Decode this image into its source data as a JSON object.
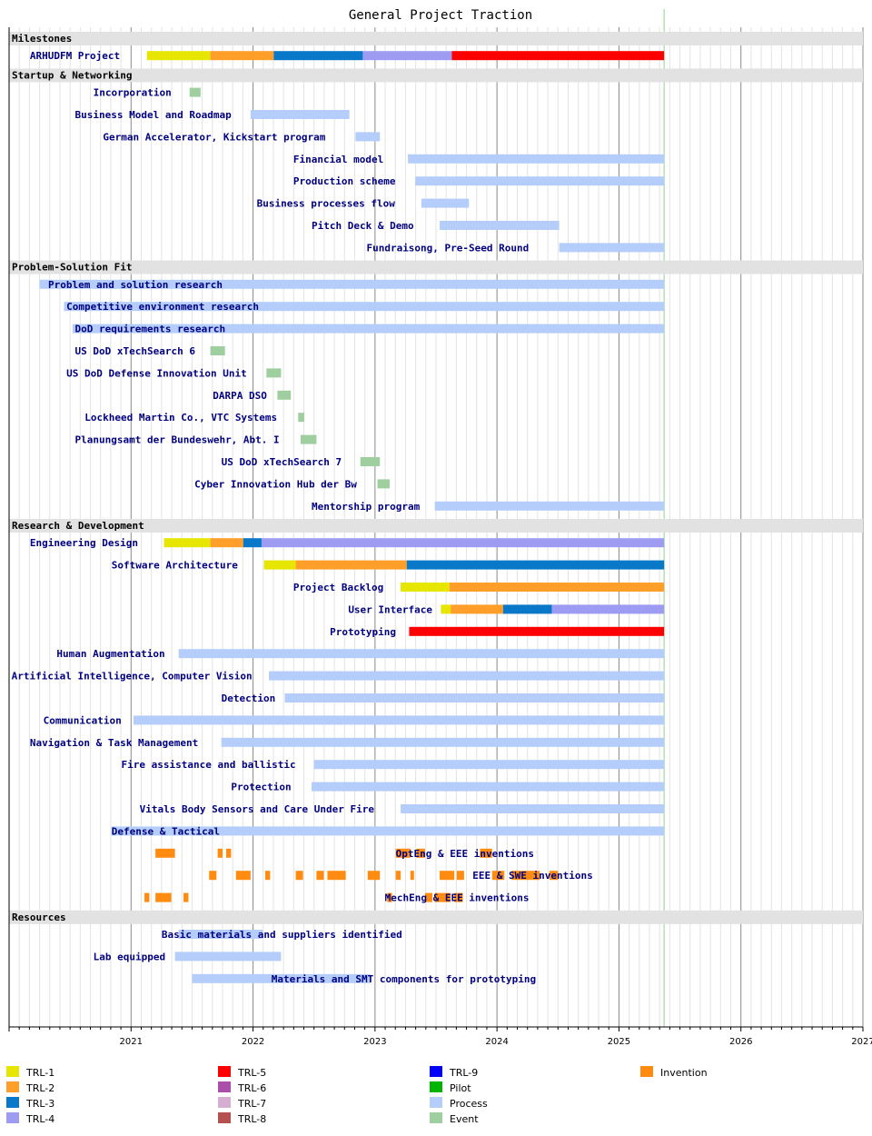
{
  "chart_data": {
    "type": "gantt",
    "title": "General Project Traction",
    "x_unit": "year",
    "xlim": [
      2020.0,
      2027.0
    ],
    "x_ticks": [
      "2021",
      "2022",
      "2023",
      "2024",
      "2025",
      "2026",
      "2027"
    ],
    "x_tick_values": [
      2021,
      2022,
      2023,
      2024,
      2025,
      2026,
      2027
    ],
    "today": 2025.37,
    "grid": "monthly",
    "legend": [
      {
        "key": "trl1",
        "label": "TRL-1",
        "color": "#e6e600"
      },
      {
        "key": "trl2",
        "label": "TRL-2",
        "color": "#ff9f2a"
      },
      {
        "key": "trl3",
        "label": "TRL-3",
        "color": "#0a78c8"
      },
      {
        "key": "trl4",
        "label": "TRL-4",
        "color": "#9d9bf2"
      },
      {
        "key": "trl5",
        "label": "TRL-5",
        "color": "#ff0000"
      },
      {
        "key": "trl6",
        "label": "TRL-6",
        "color": "#aa50aa"
      },
      {
        "key": "trl7",
        "label": "TRL-7",
        "color": "#d5aed2"
      },
      {
        "key": "trl8",
        "label": "TRL-8",
        "color": "#b55050"
      },
      {
        "key": "trl9",
        "label": "TRL-9",
        "color": "#0000ff"
      },
      {
        "key": "pilot",
        "label": "Pilot",
        "color": "#00b400"
      },
      {
        "key": "process",
        "label": "Process",
        "color": "#b4cdfa"
      },
      {
        "key": "event",
        "label": "Event",
        "color": "#9fcf9f"
      },
      {
        "key": "invention",
        "label": "Invention",
        "color": "#ff8c10"
      }
    ],
    "sections": [
      {
        "name": "Milestones",
        "rows": [
          {
            "label": "ARHUDFM Project",
            "label_at": 2020.17,
            "segments": [
              [
                2021.13,
                2021.65,
                "trl1"
              ],
              [
                2021.65,
                2022.17,
                "trl2"
              ],
              [
                2022.17,
                2022.9,
                "trl3"
              ],
              [
                2022.9,
                2023.63,
                "trl4"
              ],
              [
                2023.63,
                2025.37,
                "trl5"
              ]
            ]
          }
        ]
      },
      {
        "name": "Startup & Networking",
        "rows": [
          {
            "label": "Incorporation",
            "label_at": 2020.69,
            "segments": [
              [
                2021.48,
                2021.57,
                "event"
              ]
            ]
          },
          {
            "label": "Business Model and Roadmap",
            "label_at": 2020.54,
            "segments": [
              [
                2021.98,
                2022.79,
                "process"
              ]
            ]
          },
          {
            "label": "German Accelerator, Kickstart program",
            "label_at": 2020.77,
            "segments": [
              [
                2022.84,
                2023.04,
                "process"
              ]
            ]
          },
          {
            "label": "Financial model",
            "label_at": 2022.33,
            "segments": [
              [
                2023.27,
                2025.37,
                "process"
              ]
            ]
          },
          {
            "label": "Production scheme",
            "label_at": 2022.33,
            "segments": [
              [
                2023.33,
                2025.37,
                "process"
              ]
            ]
          },
          {
            "label": "Business processes flow",
            "label_at": 2022.03,
            "segments": [
              [
                2023.38,
                2023.77,
                "process"
              ]
            ]
          },
          {
            "label": "Pitch Deck & Demo",
            "label_at": 2022.48,
            "segments": [
              [
                2023.53,
                2024.51,
                "process"
              ]
            ]
          },
          {
            "label": "Fundraisong, Pre-Seed Round",
            "label_at": 2022.93,
            "segments": [
              [
                2024.51,
                2025.37,
                "process"
              ]
            ]
          }
        ]
      },
      {
        "name": "Problem-Solution Fit",
        "rows": [
          {
            "label": "Problem and solution research",
            "label_at": 2020.32,
            "segments": [
              [
                2020.25,
                2025.37,
                "process"
              ]
            ]
          },
          {
            "label": "Competitive environment research",
            "label_at": 2020.47,
            "segments": [
              [
                2020.45,
                2025.37,
                "process"
              ]
            ]
          },
          {
            "label": "DoD requirements research",
            "label_at": 2020.54,
            "segments": [
              [
                2020.52,
                2025.37,
                "process"
              ]
            ]
          },
          {
            "label": "US DoD xTechSearch 6",
            "label_at": 2020.54,
            "segments": [
              [
                2021.65,
                2021.77,
                "event"
              ]
            ]
          },
          {
            "label": "US DoD Defense Innovation Unit",
            "label_at": 2020.47,
            "segments": [
              [
                2022.11,
                2022.23,
                "event"
              ]
            ]
          },
          {
            "label": "DARPA DSO",
            "label_at": 2021.67,
            "segments": [
              [
                2022.2,
                2022.31,
                "event"
              ]
            ]
          },
          {
            "label": "Lockheed Martin Co., VTC Systems",
            "label_at": 2020.62,
            "segments": [
              [
                2022.37,
                2022.42,
                "event"
              ]
            ]
          },
          {
            "label": "Planungsamt der Bundeswehr, Abt. I",
            "label_at": 2020.54,
            "segments": [
              [
                2022.39,
                2022.52,
                "event"
              ]
            ]
          },
          {
            "label": "US DoD xTechSearch 7",
            "label_at": 2021.74,
            "segments": [
              [
                2022.88,
                2023.04,
                "event"
              ]
            ]
          },
          {
            "label": "Cyber Innovation Hub der Bw",
            "label_at": 2021.52,
            "segments": [
              [
                2023.02,
                2023.12,
                "event"
              ]
            ]
          },
          {
            "label": "Mentorship program",
            "label_at": 2022.48,
            "segments": [
              [
                2023.49,
                2025.37,
                "process"
              ]
            ]
          }
        ]
      },
      {
        "name": "Research & Development",
        "rows": [
          {
            "label": "Engineering Design",
            "label_at": 2020.17,
            "segments": [
              [
                2021.27,
                2021.65,
                "trl1"
              ],
              [
                2021.65,
                2021.92,
                "trl2"
              ],
              [
                2021.92,
                2022.07,
                "trl3"
              ],
              [
                2022.07,
                2025.37,
                "trl4"
              ]
            ]
          },
          {
            "label": "Software Architecture",
            "label_at": 2020.84,
            "segments": [
              [
                2022.09,
                2022.35,
                "trl1"
              ],
              [
                2022.35,
                2023.26,
                "trl2"
              ],
              [
                2023.26,
                2025.37,
                "trl3"
              ]
            ]
          },
          {
            "label": "Project Backlog",
            "label_at": 2022.33,
            "segments": [
              [
                2023.21,
                2023.61,
                "trl1"
              ],
              [
                2023.61,
                2025.37,
                "trl2"
              ]
            ]
          },
          {
            "label": "User Interface",
            "label_at": 2022.78,
            "segments": [
              [
                2023.54,
                2023.62,
                "trl1"
              ],
              [
                2023.62,
                2024.05,
                "trl2"
              ],
              [
                2024.05,
                2024.45,
                "trl3"
              ],
              [
                2024.45,
                2025.37,
                "trl4"
              ]
            ]
          },
          {
            "label": "Prototyping",
            "label_at": 2022.63,
            "segments": [
              [
                2023.28,
                2025.37,
                "trl5"
              ]
            ]
          },
          {
            "label": "Human Augmentation",
            "label_at": 2020.39,
            "segments": [
              [
                2021.39,
                2025.37,
                "process"
              ]
            ]
          },
          {
            "label": "Artificial Intelligence, Computer Vision",
            "label_at": 2020.02,
            "segments": [
              [
                2022.13,
                2025.37,
                "process"
              ]
            ]
          },
          {
            "label": "Detection",
            "label_at": 2021.74,
            "segments": [
              [
                2022.26,
                2025.37,
                "process"
              ]
            ]
          },
          {
            "label": "Communication",
            "label_at": 2020.28,
            "segments": [
              [
                2021.02,
                2025.37,
                "process"
              ]
            ]
          },
          {
            "label": "Navigation & Task Management",
            "label_at": 2020.17,
            "segments": [
              [
                2021.74,
                2025.37,
                "process"
              ]
            ]
          },
          {
            "label": "Fire assistance and ballistic",
            "label_at": 2020.92,
            "segments": [
              [
                2022.5,
                2025.37,
                "process"
              ]
            ]
          },
          {
            "label": "Protection",
            "label_at": 2021.82,
            "segments": [
              [
                2022.48,
                2025.37,
                "process"
              ]
            ]
          },
          {
            "label": "Vitals Body Sensors and Care Under Fire",
            "label_at": 2021.07,
            "segments": [
              [
                2023.21,
                2025.37,
                "process"
              ]
            ]
          },
          {
            "label": "Defense & Tactical",
            "label_at": 2020.84,
            "segments": [
              [
                2020.84,
                2025.37,
                "process"
              ]
            ]
          },
          {
            "label": "OptEng & EEE inventions",
            "label_at": 2023.17,
            "segments": [
              [
                2021.2,
                2021.36,
                "invention"
              ],
              [
                2021.71,
                2021.75,
                "invention"
              ],
              [
                2021.78,
                2021.82,
                "invention"
              ],
              [
                2023.17,
                2023.29,
                "invention"
              ],
              [
                2023.34,
                2023.41,
                "invention"
              ],
              [
                2023.86,
                2023.96,
                "invention"
              ]
            ]
          },
          {
            "label": "EEE & SWE inventions",
            "label_at": 2023.8,
            "segments": [
              [
                2021.64,
                2021.7,
                "invention"
              ],
              [
                2021.86,
                2021.98,
                "invention"
              ],
              [
                2022.1,
                2022.14,
                "invention"
              ],
              [
                2022.35,
                2022.41,
                "invention"
              ],
              [
                2022.52,
                2022.58,
                "invention"
              ],
              [
                2022.61,
                2022.76,
                "invention"
              ],
              [
                2022.94,
                2023.04,
                "invention"
              ],
              [
                2023.17,
                2023.21,
                "invention"
              ],
              [
                2023.29,
                2023.32,
                "invention"
              ],
              [
                2023.53,
                2023.65,
                "invention"
              ],
              [
                2023.67,
                2023.73,
                "invention"
              ],
              [
                2023.96,
                2024.06,
                "invention"
              ],
              [
                2024.12,
                2024.35,
                "invention"
              ],
              [
                2024.43,
                2024.5,
                "invention"
              ]
            ]
          },
          {
            "label": "MechEng & EEE inventions",
            "label_at": 2023.08,
            "segments": [
              [
                2021.11,
                2021.15,
                "invention"
              ],
              [
                2021.2,
                2021.33,
                "invention"
              ],
              [
                2021.43,
                2021.47,
                "invention"
              ],
              [
                2023.1,
                2023.14,
                "invention"
              ],
              [
                2023.41,
                2023.47,
                "invention"
              ],
              [
                2023.49,
                2023.62,
                "invention"
              ],
              [
                2023.65,
                2023.72,
                "invention"
              ]
            ]
          }
        ]
      },
      {
        "name": "Resources",
        "rows": [
          {
            "label": "Basic materials and suppliers identified",
            "label_at": 2021.25,
            "segments": [
              [
                2021.39,
                2022.08,
                "process"
              ]
            ]
          },
          {
            "label": "Lab equipped",
            "label_at": 2020.69,
            "segments": [
              [
                2021.36,
                2022.23,
                "process"
              ]
            ]
          },
          {
            "label": "Materials and SMT components for prototyping",
            "label_at": 2022.15,
            "segments": [
              [
                2021.5,
                2022.96,
                "process"
              ]
            ]
          }
        ]
      }
    ]
  }
}
